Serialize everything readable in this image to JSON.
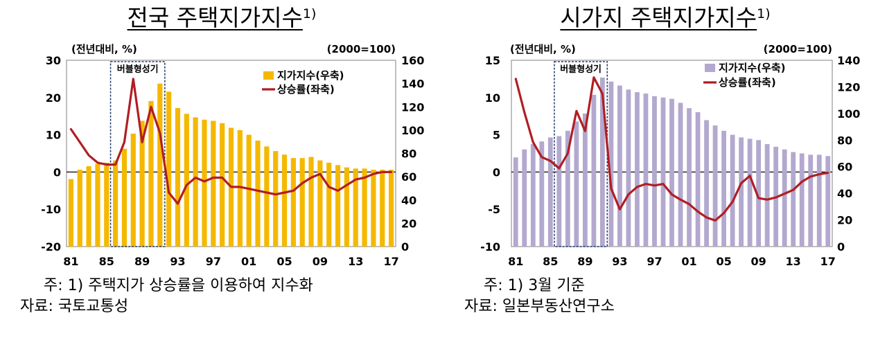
{
  "chart_data": [
    {
      "type": "bar+line",
      "title": "전국 주택지가지수",
      "title_sup": "1)",
      "left_unit": "(전년대비, %)",
      "right_unit": "(2000=100)",
      "left_ylim": [
        -20,
        30
      ],
      "left_ticks": [
        "30",
        "20",
        "10",
        "0",
        "-10",
        "-20"
      ],
      "right_ylim": [
        0,
        160
      ],
      "right_ticks": [
        "160",
        "140",
        "120",
        "100",
        "80",
        "60",
        "40",
        "20",
        "0"
      ],
      "x_ticks": [
        "81",
        "85",
        "89",
        "93",
        "97",
        "01",
        "05",
        "09",
        "13",
        "17"
      ],
      "years": [
        1981,
        1982,
        1983,
        1984,
        1985,
        1986,
        1987,
        1988,
        1989,
        1990,
        1991,
        1992,
        1993,
        1994,
        1995,
        1996,
        1997,
        1998,
        1999,
        2000,
        2001,
        2002,
        2003,
        2004,
        2005,
        2006,
        2007,
        2008,
        2009,
        2010,
        2011,
        2012,
        2013,
        2014,
        2015,
        2016,
        2017
      ],
      "shaded_label": "버블형성기",
      "shaded_range": [
        1986,
        1991
      ],
      "bar_color": "#F5B800",
      "line_color": "#B01E23",
      "series": [
        {
          "name": "지가지수(우축)",
          "axis": "right",
          "values": [
            58,
            66,
            69,
            71,
            72,
            74,
            84,
            97,
            108,
            125,
            140,
            133,
            119,
            114,
            111,
            109,
            108,
            106,
            102,
            100,
            96,
            91,
            86,
            82,
            79,
            76,
            76,
            77,
            74,
            72,
            70,
            68,
            67,
            67,
            66,
            66,
            66
          ]
        },
        {
          "name": "상승률(좌축)",
          "axis": "left",
          "values": [
            11.5,
            8,
            4.5,
            2.5,
            2,
            2,
            8,
            25,
            8,
            17.5,
            10.5,
            -5.5,
            -8.5,
            -3.5,
            -1.5,
            -2.5,
            -1.5,
            -1.5,
            -4,
            -4,
            -4.5,
            -5,
            -5.5,
            -6,
            -5.5,
            -5,
            -3,
            -1.5,
            -0.5,
            -4,
            -5,
            -3.5,
            -2,
            -1.5,
            -0.5,
            0,
            0
          ]
        }
      ]
    },
    {
      "type": "bar+line",
      "title": "시가지 주택지가지수",
      "title_sup": "1)",
      "left_unit": "(전년대비, %)",
      "right_unit": "(2000=100)",
      "left_ylim": [
        -10,
        15
      ],
      "left_ticks": [
        "15",
        "10",
        "5",
        "0",
        "-5",
        "-10"
      ],
      "right_ylim": [
        0,
        140
      ],
      "right_ticks": [
        "140",
        "120",
        "100",
        "80",
        "60",
        "40",
        "20",
        "0"
      ],
      "x_ticks": [
        "81",
        "85",
        "89",
        "93",
        "97",
        "01",
        "05",
        "09",
        "13",
        "17"
      ],
      "years": [
        1981,
        1982,
        1983,
        1984,
        1985,
        1986,
        1987,
        1988,
        1989,
        1990,
        1991,
        1992,
        1993,
        1994,
        1995,
        1996,
        1997,
        1998,
        1999,
        2000,
        2001,
        2002,
        2003,
        2004,
        2005,
        2006,
        2007,
        2008,
        2009,
        2010,
        2011,
        2012,
        2013,
        2014,
        2015,
        2016,
        2017
      ],
      "shaded_label": "버블형성기",
      "shaded_range": [
        1986,
        1991
      ],
      "bar_color": "#B3A8CE",
      "line_color": "#B01E23",
      "series": [
        {
          "name": "지가지수(우축)",
          "axis": "right",
          "values": [
            67,
            73,
            77,
            79,
            82,
            83,
            87,
            94,
            100,
            114,
            127,
            124,
            121,
            118,
            116,
            115,
            113,
            112,
            111,
            108,
            104,
            101,
            95,
            91,
            87,
            84,
            82,
            81,
            80,
            77,
            75,
            73,
            71,
            70,
            69,
            69,
            68
          ]
        },
        {
          "name": "상승률(좌축)",
          "axis": "left",
          "values": [
            12.5,
            8,
            4,
            2,
            1.5,
            0.5,
            2.5,
            8.2,
            5.5,
            12.7,
            10.5,
            -2.2,
            -5,
            -3,
            -2,
            -1.6,
            -1.8,
            -1.6,
            -3,
            -3.7,
            -4.3,
            -5.3,
            -6.1,
            -6.5,
            -5.5,
            -4,
            -1.5,
            -0.5,
            -3.5,
            -3.7,
            -3.4,
            -2.9,
            -2.4,
            -1.3,
            -0.6,
            -0.3,
            -0.1
          ]
        }
      ]
    }
  ],
  "notes": {
    "left": {
      "note": "주: 1) 주택지가 상승률을 이용하여 지수화",
      "source": "자료: 국토교통성"
    },
    "right": {
      "note": "주: 1) 3월 기준",
      "source": "자료: 일본부동산연구소"
    }
  }
}
